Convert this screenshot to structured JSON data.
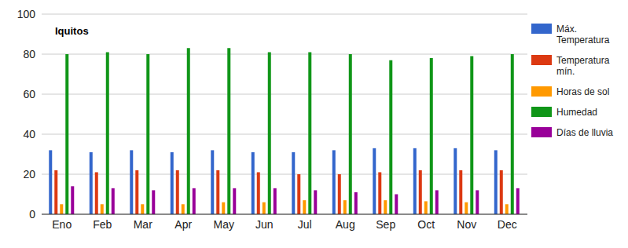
{
  "chart_data": {
    "type": "bar",
    "title": "Iquitos",
    "categories": [
      "Eno",
      "Feb",
      "Mar",
      "Apr",
      "May",
      "Jun",
      "Jul",
      "Aug",
      "Sep",
      "Oct",
      "Nov",
      "Dec"
    ],
    "series": [
      {
        "name": "Máx. Temperatura",
        "color": "#3366cc",
        "values": [
          32,
          31,
          32,
          31,
          32,
          31,
          31,
          32,
          33,
          33,
          33,
          32
        ]
      },
      {
        "name": "Temperatura mín.",
        "color": "#dc3912",
        "values": [
          22,
          21,
          22,
          22,
          22,
          21,
          20,
          20,
          21,
          22,
          22,
          22
        ]
      },
      {
        "name": "Horas de sol",
        "color": "#ff9900",
        "values": [
          5,
          5,
          5,
          5,
          6,
          6,
          7,
          7,
          7,
          6.5,
          6,
          5
        ]
      },
      {
        "name": "Humedad",
        "color": "#109618",
        "values": [
          80,
          81,
          80,
          83,
          83,
          81,
          81,
          80,
          77,
          78,
          79,
          80
        ]
      },
      {
        "name": "Días de lluvia",
        "color": "#990099",
        "values": [
          14,
          13,
          12,
          13,
          13,
          13,
          12,
          11,
          10,
          12,
          12,
          13
        ]
      }
    ],
    "ylim": [
      0,
      100
    ],
    "yticks": [
      0,
      20,
      40,
      60,
      80,
      100
    ],
    "grid": true,
    "legend": "right"
  }
}
